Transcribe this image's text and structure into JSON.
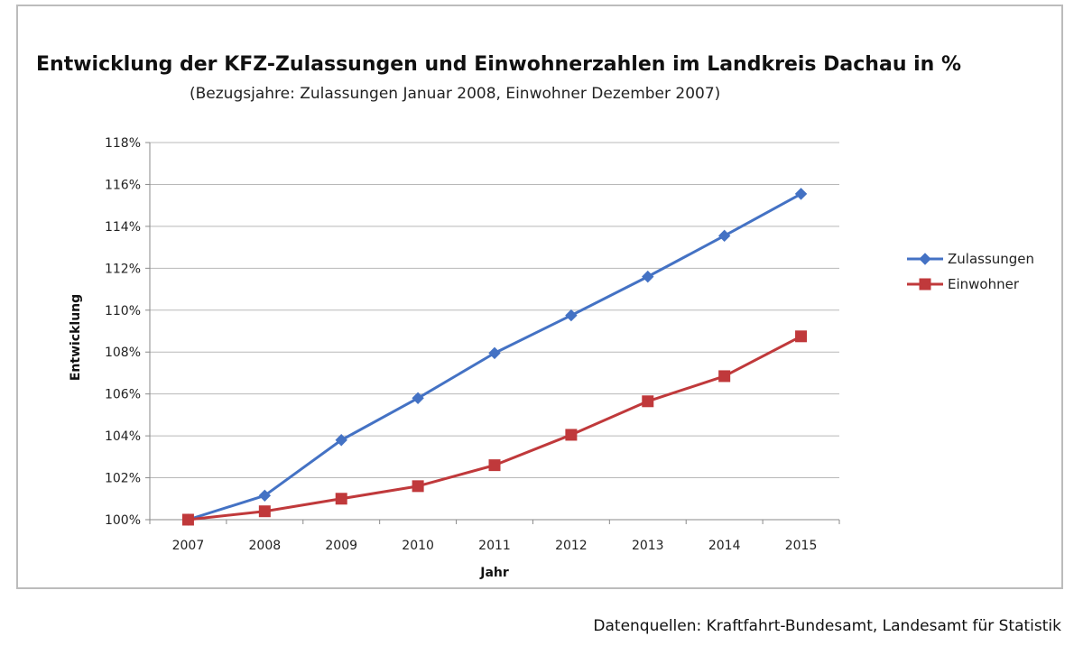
{
  "chart_data": {
    "type": "line",
    "title": "Entwicklung der KFZ-Zulassungen  und Einwohnerzahlen im Landkreis Dachau in %",
    "subtitle": "(Bezugsjahre: Zulassungen Januar 2008, Einwohner Dezember 2007)",
    "xlabel": "Jahr",
    "ylabel": "Entwicklung",
    "categories": [
      "2007",
      "2008",
      "2009",
      "2010",
      "2011",
      "2012",
      "2013",
      "2014",
      "2015"
    ],
    "ylim": [
      100,
      118
    ],
    "yticks": [
      100,
      102,
      104,
      106,
      108,
      110,
      112,
      114,
      116,
      118
    ],
    "ytick_labels": [
      "100%",
      "102%",
      "104%",
      "106%",
      "108%",
      "110%",
      "112%",
      "114%",
      "116%",
      "118%"
    ],
    "grid": true,
    "legend_position": "right",
    "series": [
      {
        "name": "Zulassungen",
        "color": "#4472c4",
        "marker": "diamond",
        "values": [
          100.0,
          101.15,
          103.8,
          105.8,
          107.95,
          109.75,
          111.6,
          113.55,
          115.55
        ]
      },
      {
        "name": "Einwohner",
        "color": "#c0393b",
        "marker": "square",
        "values": [
          100.0,
          100.4,
          101.0,
          101.6,
          102.6,
          104.05,
          105.65,
          106.85,
          108.75
        ]
      }
    ]
  },
  "source_note": "Datenquellen: Kraftfahrt-Bundesamt, Landesamt für Statistik"
}
